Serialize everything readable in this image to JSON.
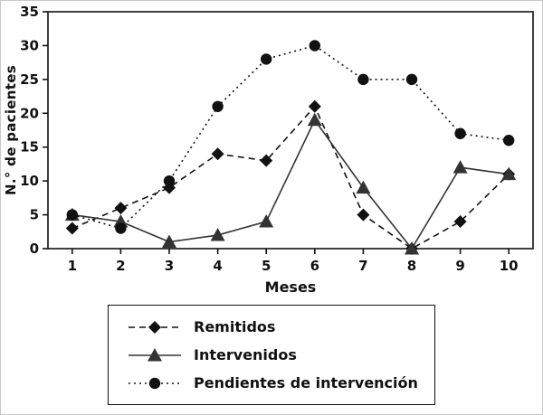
{
  "chart_data": {
    "type": "line",
    "title": "",
    "xlabel": "Meses",
    "ylabel": "N.° de pacientes",
    "x": [
      1,
      2,
      3,
      4,
      5,
      6,
      7,
      8,
      9,
      10
    ],
    "ylim": [
      0,
      35
    ],
    "ytick_step": 5,
    "grid": false,
    "legend_position": "bottom",
    "axis_color": "#111111",
    "series": [
      {
        "name": "Remitidos",
        "marker": "diamond",
        "line_style": "dashed",
        "color": "#111111",
        "values": [
          3,
          6,
          9,
          14,
          13,
          21,
          5,
          0,
          4,
          11
        ]
      },
      {
        "name": "Intervenidos",
        "marker": "triangle",
        "line_style": "solid",
        "color": "#333333",
        "values": [
          5,
          4,
          1,
          2,
          4,
          19,
          9,
          0,
          12,
          11
        ]
      },
      {
        "name": "Pendientes de intervención",
        "marker": "circle",
        "line_style": "dotted",
        "color": "#111111",
        "values": [
          5,
          3,
          10,
          21,
          28,
          30,
          25,
          25,
          17,
          16
        ]
      }
    ]
  }
}
